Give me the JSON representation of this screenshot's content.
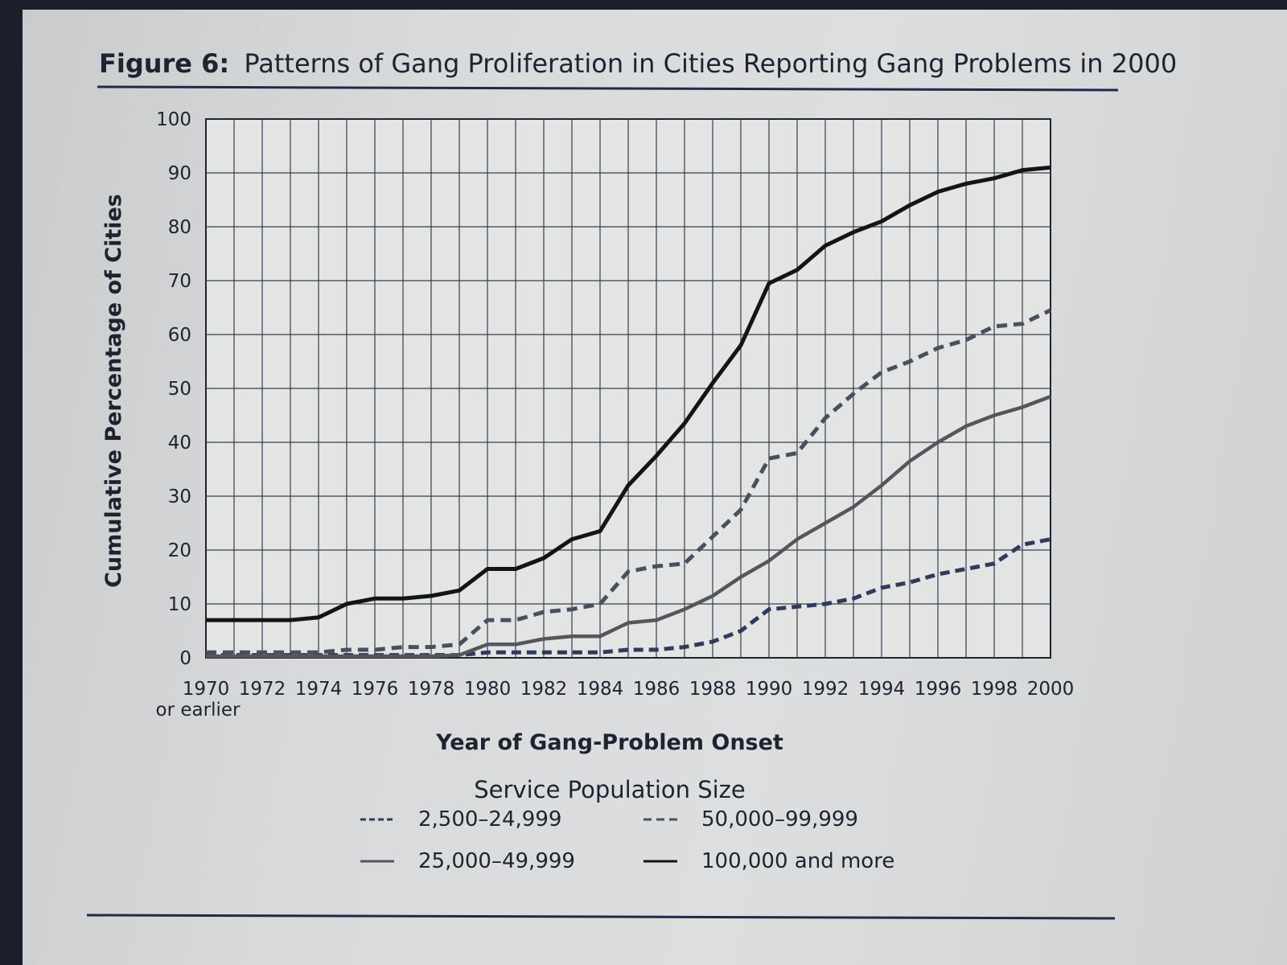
{
  "chart_data": {
    "type": "line",
    "title": "Figure 6: Patterns of Gang Proliferation in Cities Reporting Gang Problems in 2000",
    "title_prefix": "Figure 6:",
    "title_text": "Patterns of Gang Proliferation in Cities Reporting Gang Problems in 2000",
    "xlabel": "Year of Gang-Problem Onset",
    "ylabel": "Cumulative Percentage of Cities",
    "x": [
      1970,
      1971,
      1972,
      1973,
      1974,
      1975,
      1976,
      1977,
      1978,
      1979,
      1980,
      1981,
      1982,
      1983,
      1984,
      1985,
      1986,
      1987,
      1988,
      1989,
      1990,
      1991,
      1992,
      1993,
      1994,
      1995,
      1996,
      1997,
      1998,
      1999,
      2000
    ],
    "x_tick_labels": [
      "1970",
      "1972",
      "1974",
      "1976",
      "1978",
      "1980",
      "1982",
      "1984",
      "1986",
      "1988",
      "1990",
      "1992",
      "1994",
      "1996",
      "1998",
      "2000"
    ],
    "x_first_sublabel": "or earlier",
    "y_ticks": [
      "0",
      "10",
      "20",
      "30",
      "40",
      "50",
      "60",
      "70",
      "80",
      "90",
      "100"
    ],
    "ylim": [
      0,
      100
    ],
    "grid": true,
    "legend_title": "Service Population Size",
    "series": [
      {
        "name": "2,500–24,999",
        "style": "dashed",
        "color": "#2f3a5c",
        "values": [
          0.5,
          0.5,
          0.5,
          0.5,
          0.5,
          0.5,
          0.5,
          0.5,
          0.5,
          0.5,
          1,
          1,
          1,
          1,
          1,
          1.5,
          1.5,
          2,
          3,
          5,
          9,
          9.5,
          10,
          11,
          13,
          14,
          15.5,
          16.5,
          17.5,
          21,
          22
        ]
      },
      {
        "name": "25,000–49,999",
        "style": "solid",
        "color": "#54565c",
        "values": [
          0.3,
          0.3,
          0.3,
          0.3,
          0.3,
          0.3,
          0.3,
          0.3,
          0.3,
          0.5,
          2.5,
          2.5,
          3.5,
          4,
          4,
          6.5,
          7,
          9,
          11.5,
          15,
          18,
          22,
          25,
          28,
          32,
          36.5,
          40,
          43,
          45,
          46.5,
          48.5
        ]
      },
      {
        "name": "50,000–99,999",
        "style": "dash-dot",
        "color": "#4a4f5e",
        "values": [
          1,
          1,
          1,
          1,
          1,
          1.5,
          1.5,
          2,
          2,
          2.5,
          7,
          7,
          8.5,
          9,
          10,
          16,
          17,
          17.5,
          22.5,
          27.5,
          37,
          38,
          44.5,
          49,
          53,
          55,
          57.5,
          59,
          61.5,
          62,
          64.5
        ]
      },
      {
        "name": "100,000 and more",
        "style": "solid-bold",
        "color": "#141414",
        "values": [
          7,
          7,
          7,
          7,
          7.5,
          10,
          11,
          11,
          11.5,
          12.5,
          16.5,
          16.5,
          18.5,
          22,
          23.5,
          32,
          37.5,
          43.5,
          51,
          58,
          69.5,
          72,
          76.5,
          79,
          81,
          84,
          86.5,
          88,
          89,
          90.5,
          91
        ]
      }
    ]
  }
}
